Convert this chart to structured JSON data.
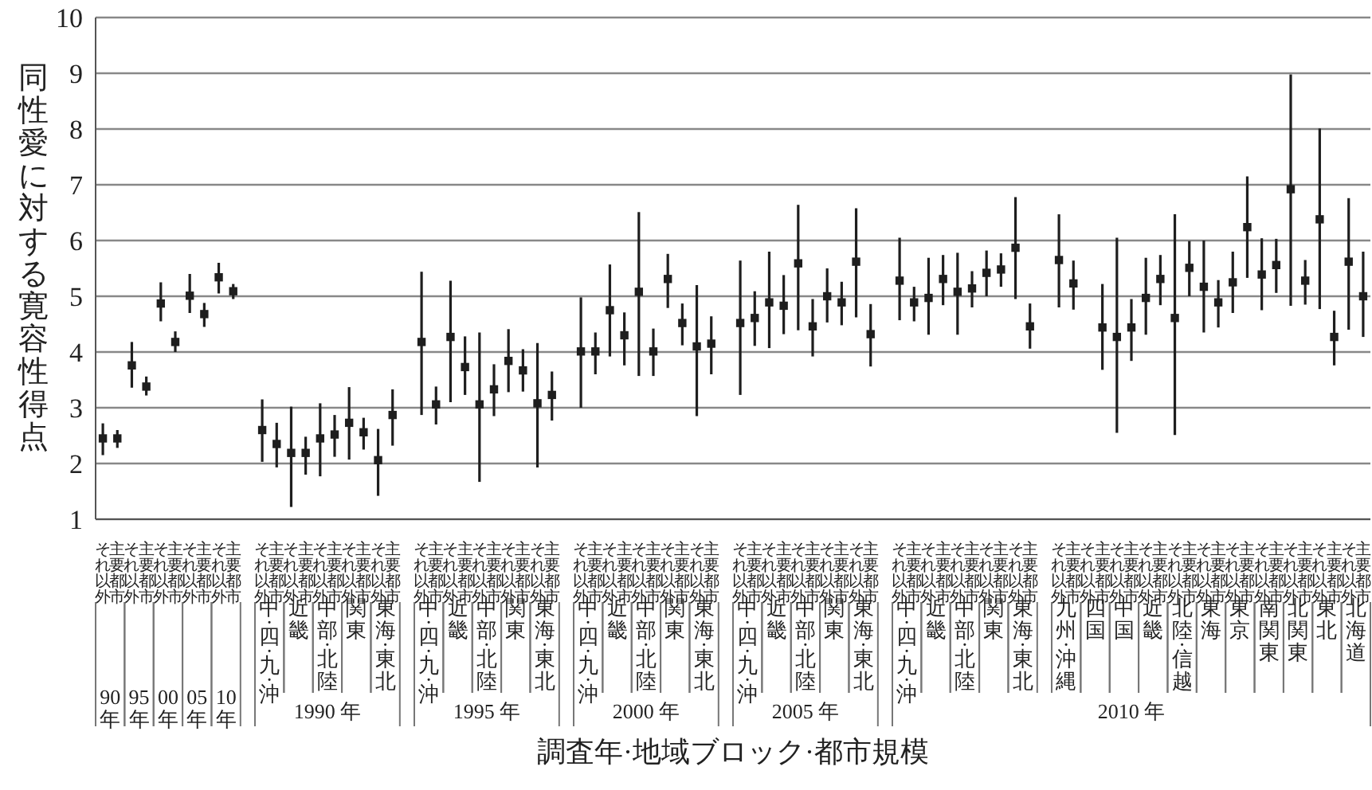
{
  "chart_data": {
    "type": "scatter",
    "xlabel": "調査年·地域ブロック·都市規模",
    "ylabel": "同性愛に対する寛容性得点",
    "categories": [
      "それ以外",
      "主要都市",
      "それ以外",
      "主要都市",
      "それ以外",
      "主要都市",
      "それ以外",
      "主要都市",
      "それ以外",
      "主要都市",
      null,
      "それ以外",
      "主要都市",
      "それ以外",
      "主要都市",
      "それ以外",
      "主要都市",
      "それ以外",
      "主要都市",
      "それ以外",
      "主要都市",
      null,
      "それ以外",
      "主要都市",
      "それ以外",
      "主要都市",
      "それ以外",
      "主要都市",
      "それ以外",
      "主要都市",
      "それ以外",
      "主要都市",
      null,
      "それ以外",
      "主要都市",
      "それ以外",
      "主要都市",
      "それ以外",
      "主要都市",
      "それ以外",
      "主要都市",
      "それ以外",
      "主要都市",
      null,
      "それ以外",
      "主要都市",
      "それ以外",
      "主要都市",
      "それ以外",
      "主要都市",
      "それ以外",
      "主要都市",
      "それ以外",
      "主要都市",
      null,
      "それ以外",
      "主要都市",
      "それ以外",
      "主要都市",
      "それ以外",
      "主要都市",
      "それ以外",
      "主要都市",
      "それ以外",
      "主要都市",
      null,
      "それ以外",
      "主要都市",
      "それ以外",
      "主要都市",
      "それ以外",
      "主要都市",
      "それ以外",
      "主要都市",
      "それ以外",
      "主要都市",
      "それ以外",
      "主要都市",
      "それ以外",
      "主要都市",
      "それ以外",
      "主要都市",
      "それ以外",
      "主要都市",
      "それ以外",
      "主要都市",
      "それ以外",
      "主要都市"
    ],
    "values": [
      2.45,
      2.45,
      3.76,
      3.38,
      4.87,
      4.18,
      5.01,
      4.68,
      5.34,
      5.09,
      null,
      2.6,
      2.35,
      2.19,
      2.19,
      2.45,
      2.52,
      2.73,
      2.56,
      2.06,
      2.87,
      null,
      4.18,
      3.06,
      4.27,
      3.73,
      3.06,
      3.33,
      3.84,
      3.67,
      3.08,
      3.23,
      null,
      4.01,
      4.01,
      4.75,
      4.3,
      5.08,
      4.01,
      5.31,
      4.52,
      4.1,
      4.15,
      null,
      4.52,
      4.61,
      4.89,
      4.83,
      5.59,
      4.46,
      5.0,
      4.89,
      5.62,
      4.32,
      null,
      5.28,
      4.89,
      4.97,
      5.31,
      5.08,
      5.14,
      5.42,
      5.48,
      5.87,
      4.46,
      null,
      5.65,
      5.23,
      null,
      4.44,
      4.27,
      4.44,
      4.97,
      5.31,
      4.61,
      5.51,
      5.17,
      4.89,
      5.25,
      6.24,
      5.39,
      5.56,
      6.92,
      5.28,
      6.38,
      4.27,
      5.62,
      5.0
    ],
    "errors": [
      [
        2.15,
        2.72
      ],
      [
        2.28,
        2.6
      ],
      [
        3.36,
        4.18
      ],
      [
        3.22,
        3.56
      ],
      [
        4.55,
        5.25
      ],
      [
        4.0,
        4.37
      ],
      [
        4.7,
        5.4
      ],
      [
        4.45,
        4.88
      ],
      [
        5.05,
        5.6
      ],
      [
        4.95,
        5.22
      ],
      null,
      [
        2.03,
        3.15
      ],
      [
        1.93,
        2.73
      ],
      [
        1.22,
        3.02
      ],
      [
        1.8,
        2.48
      ],
      [
        1.77,
        3.08
      ],
      [
        2.12,
        2.87
      ],
      [
        2.07,
        3.37
      ],
      [
        2.25,
        2.82
      ],
      [
        1.42,
        2.62
      ],
      [
        2.32,
        3.33
      ],
      null,
      [
        2.87,
        5.44
      ],
      [
        2.7,
        3.38
      ],
      [
        3.1,
        5.28
      ],
      [
        3.23,
        4.28
      ],
      [
        1.67,
        4.35
      ],
      [
        2.85,
        3.78
      ],
      [
        3.28,
        4.41
      ],
      [
        3.29,
        4.05
      ],
      [
        1.93,
        4.16
      ],
      [
        2.77,
        3.65
      ],
      null,
      [
        3.0,
        4.98
      ],
      [
        3.6,
        4.35
      ],
      [
        3.92,
        5.57
      ],
      [
        3.76,
        4.71
      ],
      [
        3.57,
        6.51
      ],
      [
        3.57,
        4.42
      ],
      [
        4.79,
        5.76
      ],
      [
        4.12,
        4.87
      ],
      [
        2.85,
        5.2
      ],
      [
        3.6,
        4.64
      ],
      null,
      [
        3.23,
        5.64
      ],
      [
        4.11,
        5.09
      ],
      [
        4.07,
        5.8
      ],
      [
        4.32,
        5.38
      ],
      [
        4.39,
        6.64
      ],
      [
        3.92,
        4.95
      ],
      [
        4.53,
        5.5
      ],
      [
        4.48,
        5.26
      ],
      [
        4.62,
        6.58
      ],
      [
        3.74,
        4.86
      ],
      null,
      [
        4.57,
        6.05
      ],
      [
        4.55,
        5.17
      ],
      [
        4.31,
        5.69
      ],
      [
        4.84,
        5.74
      ],
      [
        4.31,
        5.78
      ],
      [
        4.8,
        5.45
      ],
      [
        5.0,
        5.82
      ],
      [
        5.17,
        5.77
      ],
      [
        4.95,
        6.78
      ],
      [
        4.06,
        4.87
      ],
      null,
      [
        4.8,
        6.47
      ],
      [
        4.76,
        5.64
      ],
      null,
      [
        3.68,
        5.22
      ],
      [
        2.55,
        6.05
      ],
      [
        3.84,
        4.95
      ],
      [
        4.31,
        5.69
      ],
      [
        4.84,
        5.74
      ],
      [
        2.51,
        6.47
      ],
      [
        5.0,
        5.99
      ],
      [
        4.35,
        6.0
      ],
      [
        4.44,
        5.29
      ],
      [
        4.7,
        5.8
      ],
      [
        5.33,
        7.15
      ],
      [
        4.75,
        6.04
      ],
      [
        5.06,
        6.03
      ],
      [
        4.83,
        8.98
      ],
      [
        4.85,
        5.65
      ],
      [
        4.77,
        8.01
      ],
      [
        3.76,
        4.74
      ],
      [
        4.4,
        6.76
      ],
      [
        4.27,
        5.8
      ]
    ],
    "color": "#1e1e1e",
    "marker": "square",
    "grid": "y",
    "ylim": [
      1,
      10
    ],
    "yticks": [
      1,
      2,
      3,
      4,
      5,
      6,
      7,
      8,
      9,
      10
    ],
    "annotations": [
      "90年",
      "95年",
      "00年",
      "05年",
      "10年",
      "中·四·九·沖",
      "近畿",
      "中部·北陸",
      "関東",
      "東海·東北",
      "中·四·九·沖",
      "近畿",
      "中部·北陸",
      "関東",
      "東海·東北",
      "中·四·九·沖",
      "近畿",
      "中部·北陸",
      "関東",
      "東海·東北",
      "中·四·九·沖",
      "近畿",
      "中部·北陸",
      "関東",
      "東海·東北",
      "中·四·九·沖",
      "近畿",
      "中部·北陸",
      "関東",
      "東海·東北",
      "九州·沖縄",
      "四国",
      "中国",
      "近畿",
      "北陸·信越",
      "東海",
      "東京",
      "南関東",
      "北関東",
      "東北",
      "北海道",
      "1990 年",
      "1995 年",
      "2000 年",
      "2005 年",
      "2010 年"
    ]
  }
}
